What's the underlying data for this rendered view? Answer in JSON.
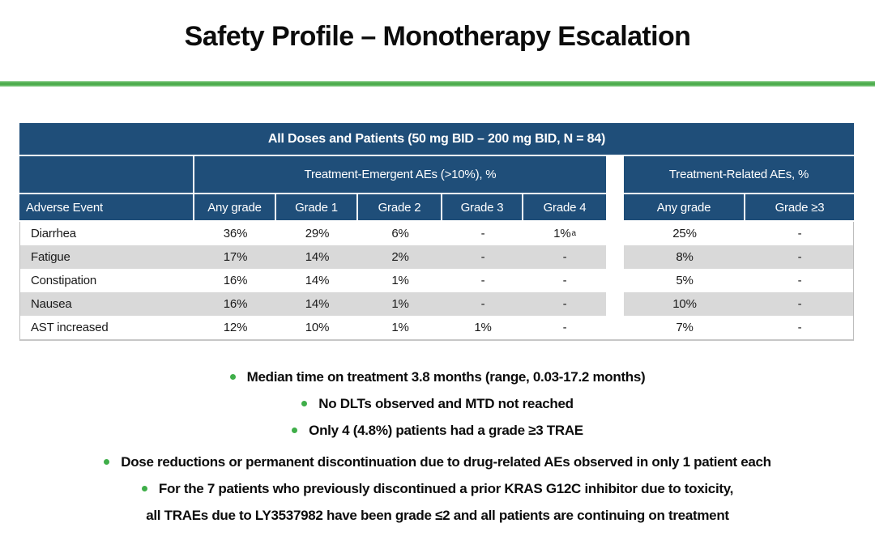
{
  "slide_title": "Safety Profile – Monotherapy Escalation",
  "colors": {
    "header_blue": "#1F4E79",
    "row_stripe_gray": "#D9D9D9",
    "rule_green": "#4FAE4F",
    "bullet_green": "#3FAE49"
  },
  "table": {
    "banner": "All Doses and Patients (50 mg BID – 200 mg BID, N = 84)",
    "group_emergent": "Treatment-Emergent AEs (>10%), %",
    "group_related": "Treatment-Related AEs, %",
    "col_adverse_event": "Adverse Event",
    "col_te_any_grade": "Any grade",
    "col_grade1": "Grade 1",
    "col_grade2": "Grade 2",
    "col_grade3": "Grade 3",
    "col_grade4": "Grade 4",
    "col_tr_any_grade": "Any grade",
    "col_tr_grade_ge3": "Grade ≥3",
    "rows": [
      {
        "event": "Diarrhea",
        "te_any": "36%",
        "g1": "29%",
        "g2": "6%",
        "g3": "-",
        "g4": "1%",
        "g4_sup": "a",
        "tr_any": "25%",
        "tr_ge3": "-"
      },
      {
        "event": "Fatigue",
        "te_any": "17%",
        "g1": "14%",
        "g2": "2%",
        "g3": "-",
        "g4": "-",
        "tr_any": "8%",
        "tr_ge3": "-"
      },
      {
        "event": "Constipation",
        "te_any": "16%",
        "g1": "14%",
        "g2": "1%",
        "g3": "-",
        "g4": "-",
        "tr_any": "5%",
        "tr_ge3": "-"
      },
      {
        "event": "Nausea",
        "te_any": "16%",
        "g1": "14%",
        "g2": "1%",
        "g3": "-",
        "g4": "-",
        "tr_any": "10%",
        "tr_ge3": "-"
      },
      {
        "event": "AST increased",
        "te_any": "12%",
        "g1": "10%",
        "g2": "1%",
        "g3": "1%",
        "g4": "-",
        "tr_any": "7%",
        "tr_ge3": "-"
      }
    ]
  },
  "bullets": [
    {
      "text": "Median time on treatment 3.8 months (range, 0.03-17.2 months)"
    },
    {
      "text": "No DLTs observed and MTD not reached"
    },
    {
      "text": "Only 4 (4.8%) patients had a grade ≥3 TRAE"
    },
    {
      "text": "Dose reductions or permanent discontinuation due to drug-related AEs observed in only 1 patient each"
    },
    {
      "text": "For the 7 patients who previously discontinued a prior KRAS G12C inhibitor due to toxicity,"
    },
    {
      "text": "all TRAEs due to LY3537982 have been grade ≤2 and all patients are continuing on treatment"
    }
  ]
}
